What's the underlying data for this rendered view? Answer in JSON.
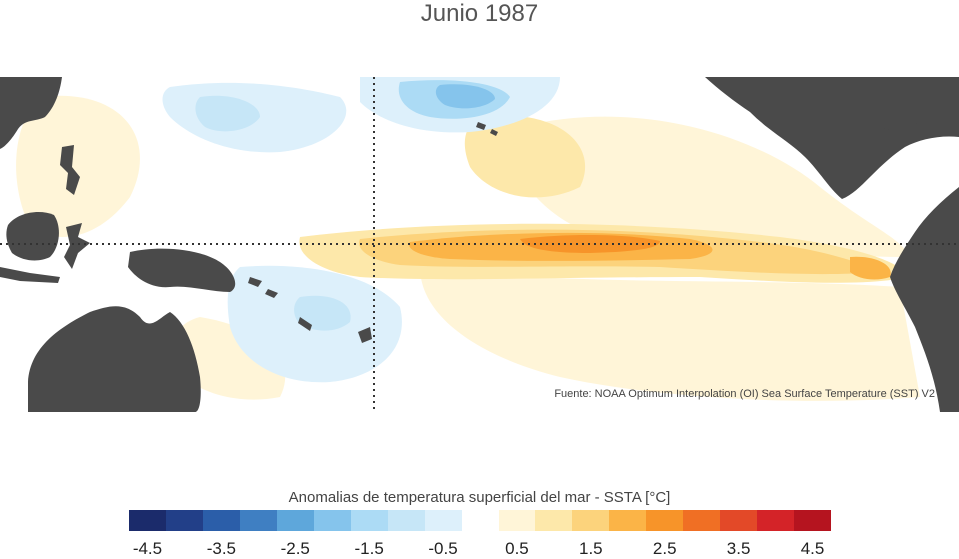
{
  "title": "Junio 1987",
  "source": "Fuente: NOAA Optimum Interpolation (OI) Sea Surface Temperature (SST) V2",
  "legend": {
    "title": "Anomalias de temperatura superficial del mar - SSTA  [°C]",
    "ticks": [
      "-4.5",
      "-3.5",
      "-2.5",
      "-1.5",
      "-0.5",
      "0.5",
      "1.5",
      "2.5",
      "3.5",
      "4.5"
    ],
    "colors": [
      "#1b2b6b",
      "#223f88",
      "#2b5ea9",
      "#3f7fc2",
      "#5ea7db",
      "#85c4ec",
      "#acdbf5",
      "#c6e6f7",
      "#ddf0fb",
      "#ffffff",
      "#fff5d8",
      "#fde8aa",
      "#fcd37c",
      "#fbb447",
      "#f79429",
      "#f06f24",
      "#e34928",
      "#d42328",
      "#b5141f"
    ]
  },
  "map_colors": {
    "land": "#4a4a4a",
    "ocean": "#ffffff",
    "guide": "#333333"
  }
}
